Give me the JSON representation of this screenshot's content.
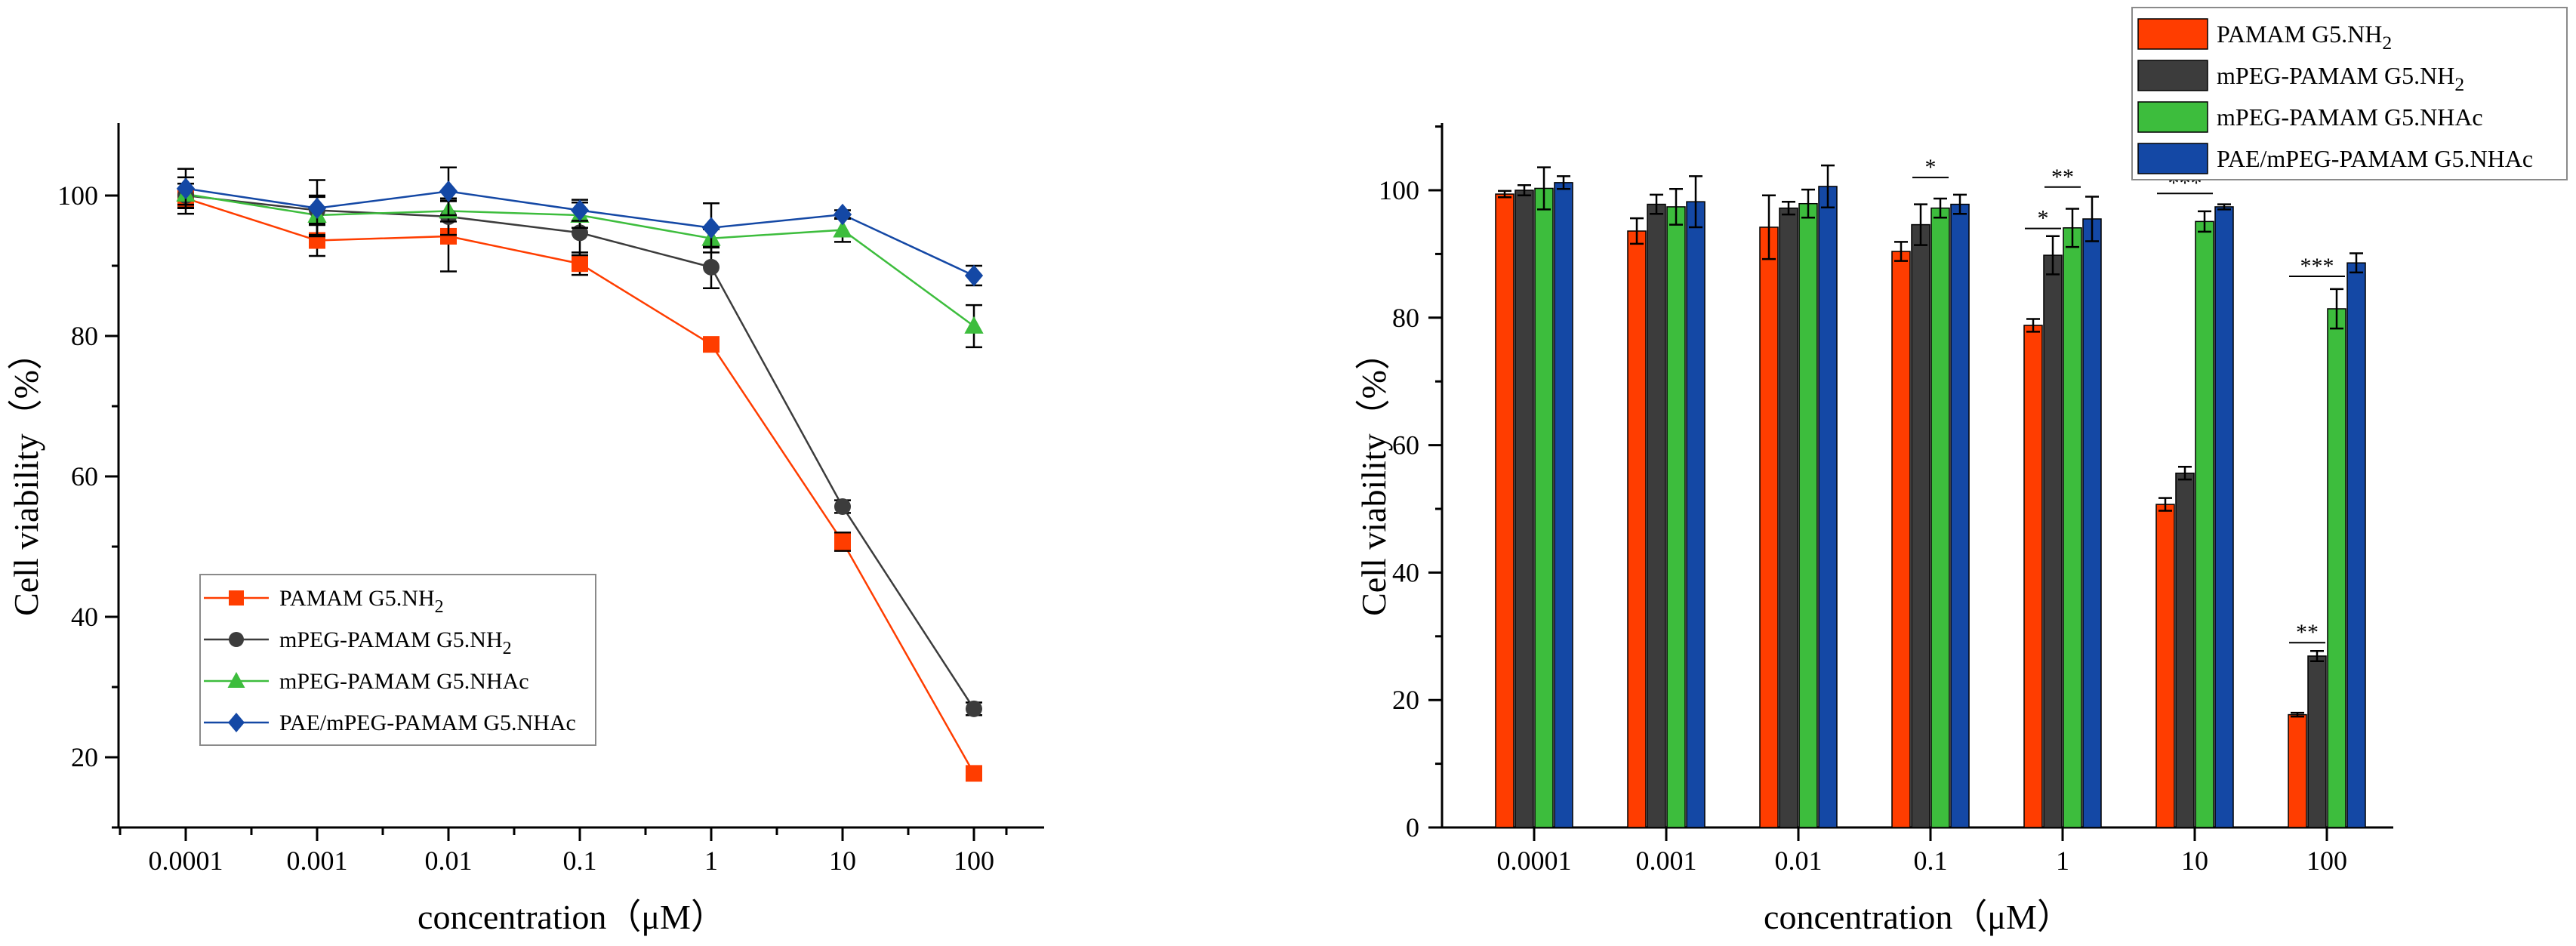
{
  "chart_data": [
    {
      "type": "line",
      "ylabel": "Cell viability（%）",
      "xlabel": "concentration（μM）",
      "categories": [
        "0.0001",
        "0.001",
        "0.01",
        "0.1",
        "1",
        "10",
        "100"
      ],
      "ylim": [
        10,
        110
      ],
      "yticks": [
        "20",
        "40",
        "60",
        "80",
        "100"
      ],
      "legend_position": "lower-left",
      "series": [
        {
          "name": "PAMAM G5.NH",
          "sub": "2",
          "color": "#ff3d00",
          "marker": "square",
          "values": [
            99.6,
            93.6,
            94.2,
            90.3,
            78.8,
            50.7,
            17.7
          ],
          "errors": [
            1.2,
            2.2,
            5.0,
            1.6,
            1.0,
            1.3,
            0.5
          ]
        },
        {
          "name": "mPEG-PAMAM G5.NH",
          "sub": "2",
          "color": "#3c3c3c",
          "marker": "circle",
          "values": [
            100.0,
            97.9,
            97.0,
            94.7,
            89.8,
            55.7,
            26.9
          ],
          "errors": [
            2.6,
            1.9,
            2.6,
            3.2,
            3.0,
            0.9,
            0.9
          ]
        },
        {
          "name": "mPEG-PAMAM G5.NHAc",
          "sub": "",
          "color": "#3dbd3d",
          "marker": "triangle",
          "values": [
            100.2,
            97.2,
            97.8,
            97.2,
            93.9,
            95.1,
            81.4
          ],
          "errors": [
            1.5,
            2.8,
            1.5,
            1.8,
            1.3,
            1.7,
            3.0
          ]
        },
        {
          "name": "PAE/mPEG-PAMAM G5.NHAc",
          "sub": "",
          "color": "#1448a5",
          "marker": "diamond",
          "values": [
            101.0,
            98.2,
            100.6,
            97.9,
            95.4,
            97.3,
            88.6
          ],
          "errors": [
            2.8,
            4.0,
            3.4,
            1.5,
            3.5,
            0.6,
            1.4
          ]
        }
      ]
    },
    {
      "type": "bar",
      "ylabel": "Cell viability（%）",
      "xlabel": "concentration（μM）",
      "categories": [
        "0.0001",
        "0.001",
        "0.01",
        "0.1",
        "1",
        "10",
        "100"
      ],
      "ylim": [
        0,
        110
      ],
      "yticks": [
        "0",
        "20",
        "40",
        "60",
        "80",
        "100"
      ],
      "legend_position": "top-right",
      "series": [
        {
          "name": "PAMAM G5.NH",
          "sub": "2",
          "color": "#ff3d00",
          "values": [
            99.4,
            93.6,
            94.2,
            90.4,
            78.8,
            50.7,
            17.7
          ],
          "errors": [
            0.5,
            2.0,
            5.0,
            1.5,
            1.0,
            1.0,
            0.3
          ]
        },
        {
          "name": "mPEG-PAMAM G5.NH",
          "sub": "2",
          "color": "#3c3c3c",
          "values": [
            100.0,
            97.8,
            97.2,
            94.6,
            89.8,
            55.6,
            26.9
          ],
          "errors": [
            0.8,
            1.5,
            1.0,
            3.2,
            3.0,
            1.0,
            0.8
          ]
        },
        {
          "name": "mPEG-PAMAM G5.NHAc",
          "sub": "",
          "color": "#3dbd3d",
          "values": [
            100.3,
            97.4,
            97.9,
            97.2,
            94.1,
            95.1,
            81.4
          ],
          "errors": [
            3.3,
            2.8,
            2.2,
            1.5,
            3.0,
            1.6,
            3.1
          ]
        },
        {
          "name": "PAE/mPEG-PAMAM G5.NHAc",
          "sub": "",
          "color": "#1448a5",
          "values": [
            101.2,
            98.2,
            100.6,
            97.8,
            95.5,
            97.4,
            88.6
          ],
          "errors": [
            1.0,
            4.0,
            3.3,
            1.5,
            3.5,
            0.4,
            1.5
          ]
        }
      ],
      "significance": [
        {
          "category": 3,
          "from": 1,
          "to": 2,
          "level": 102.0,
          "label": "*"
        },
        {
          "category": 4,
          "from": 1,
          "to": 2,
          "level": 100.5,
          "label": "**"
        },
        {
          "category": 4,
          "from": 0,
          "to": 1,
          "level": 94.0,
          "label": "*"
        },
        {
          "category": 5,
          "from": 0,
          "to": 2,
          "level": 99.5,
          "label": "***"
        },
        {
          "category": 6,
          "from": 0,
          "to": 2,
          "level": 86.5,
          "label": "***"
        },
        {
          "category": 6,
          "from": 0,
          "to": 1,
          "level": 29.0,
          "label": "**"
        }
      ]
    }
  ]
}
